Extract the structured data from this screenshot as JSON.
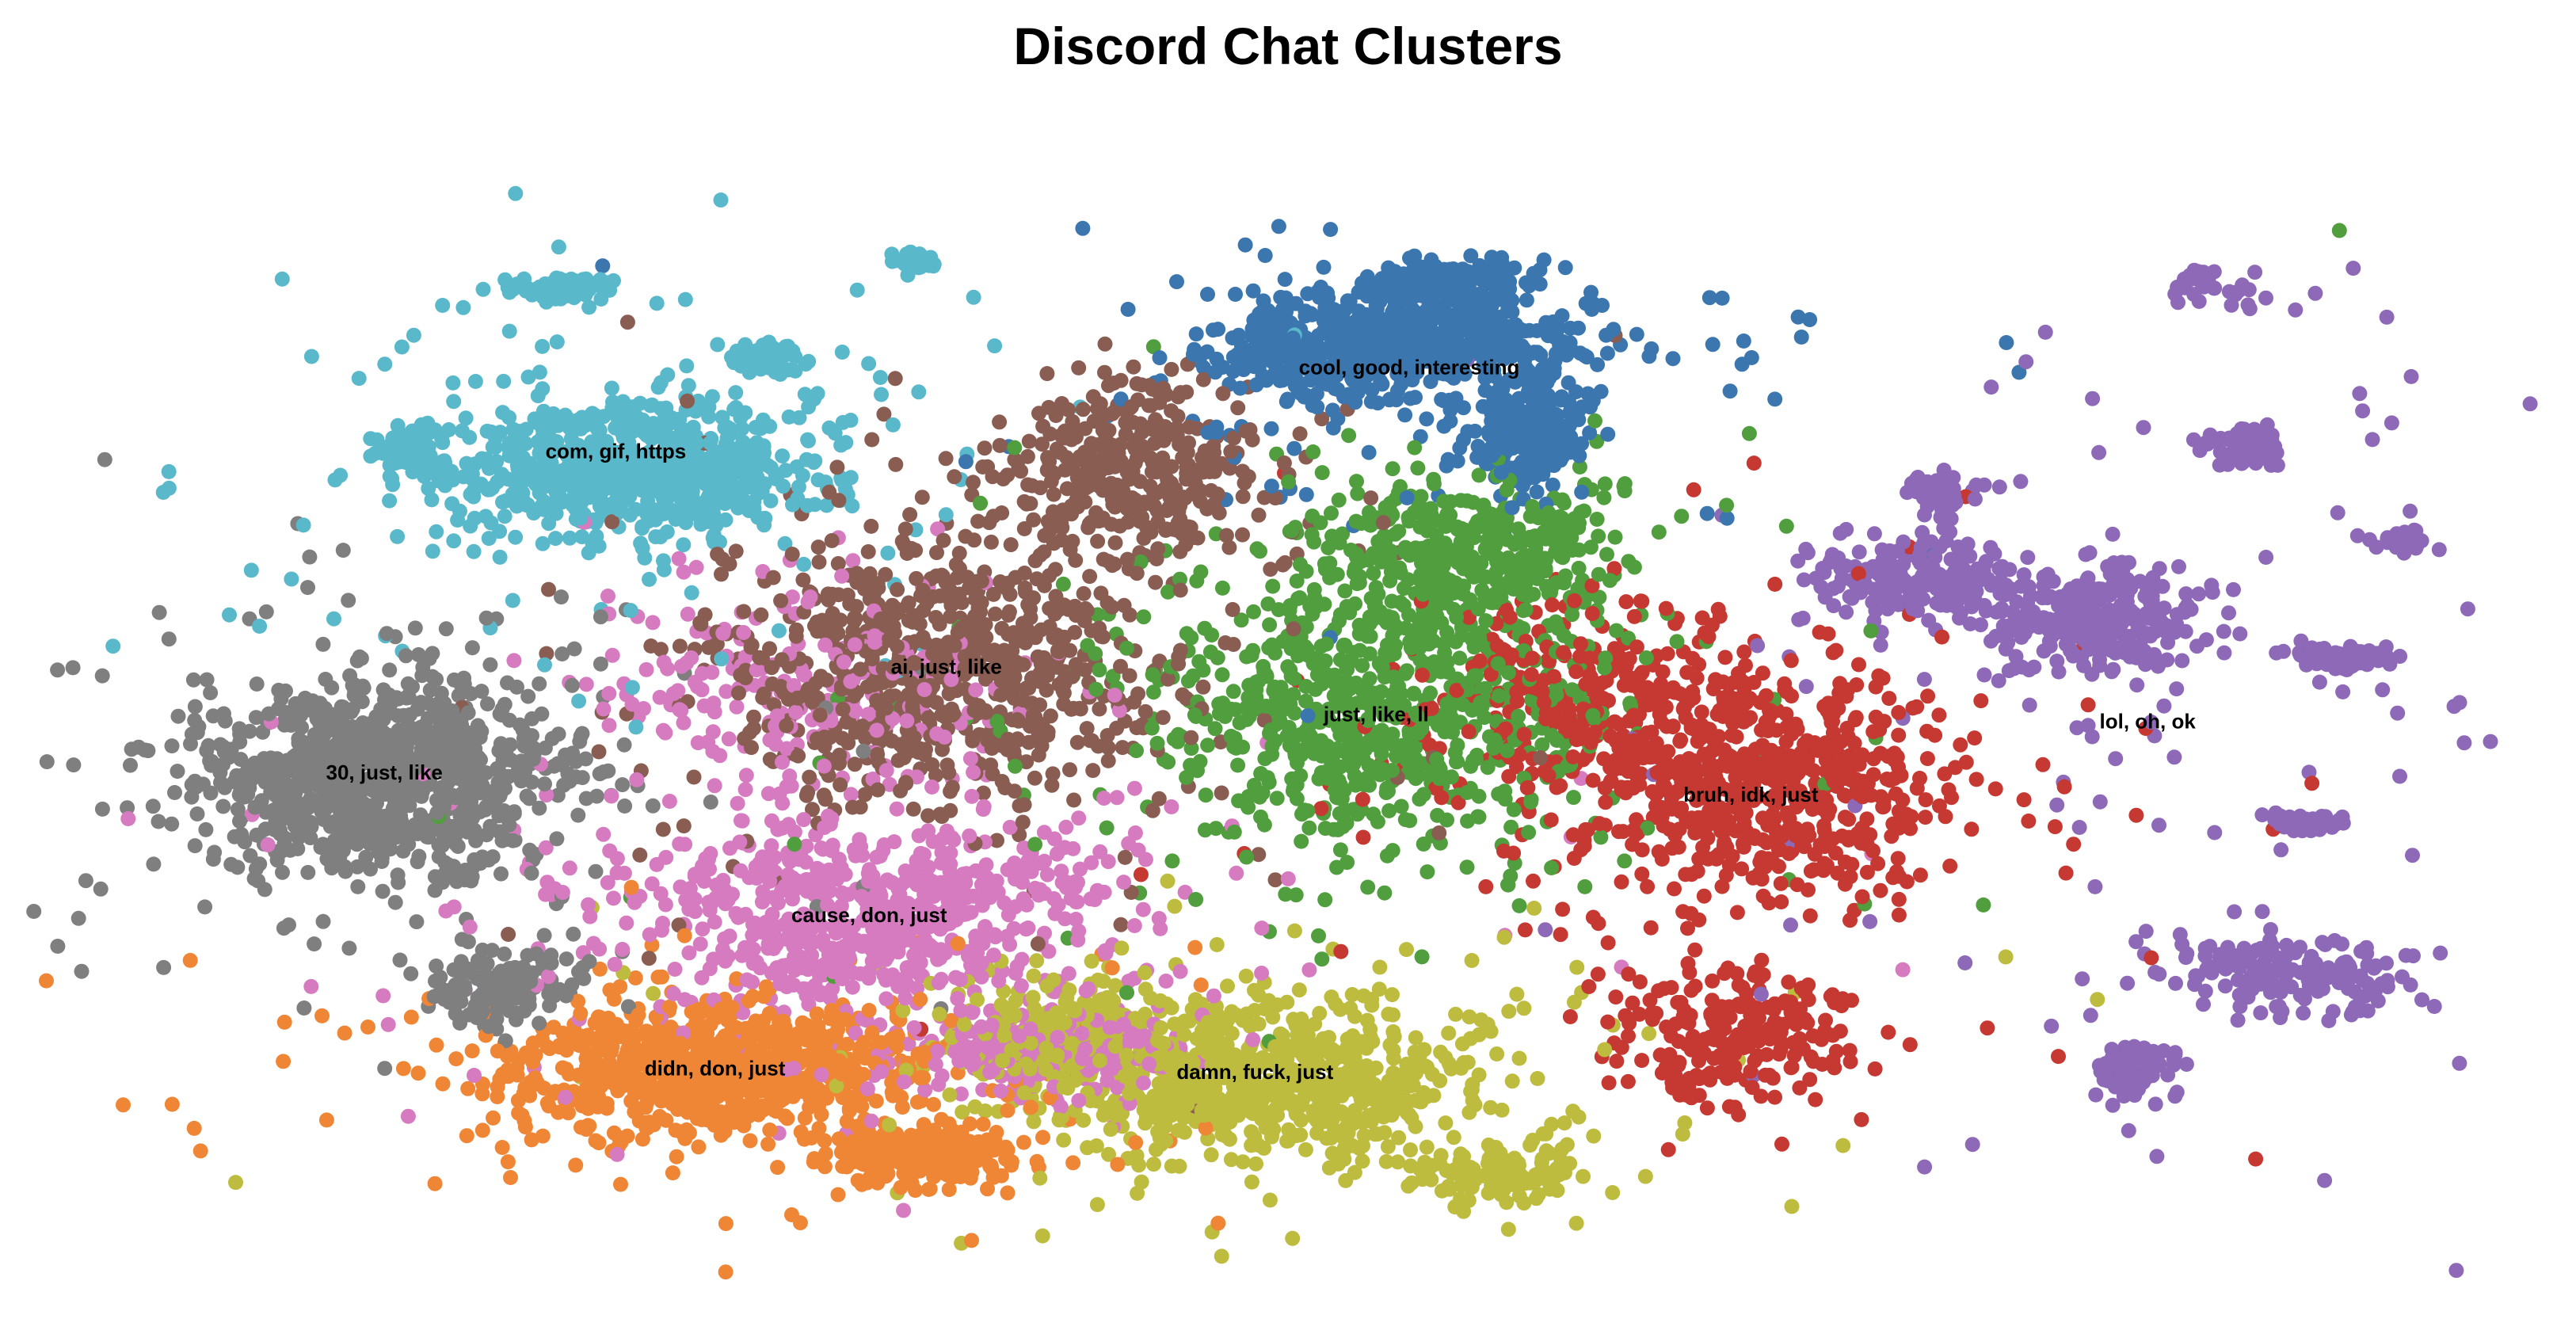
{
  "chart_data": {
    "type": "scatter",
    "title": "Discord Chat Clusters",
    "xlabel": "",
    "ylabel": "",
    "grid": false,
    "axes_visible": false,
    "legend": "none",
    "series": [
      {
        "id": "cluster-0",
        "label": "cool, good, interesting",
        "color": "#3b76af",
        "center": [
          1.3,
          4.95
        ],
        "spread": [
          1.35,
          0.95
        ],
        "blobs": [
          [
            1.3,
            5.3,
            1.2,
            0.55,
            0.9
          ],
          [
            2.35,
            4.1,
            0.45,
            0.6,
            0.45
          ],
          [
            0.3,
            5.2,
            0.5,
            0.55,
            0.35
          ],
          [
            1.65,
            6.1,
            0.6,
            0.25,
            0.3
          ]
        ]
      },
      {
        "id": "cluster-1",
        "label": "com, gif, https",
        "color": "#59b9cb",
        "center": [
          -5.9,
          3.8
        ],
        "spread": [
          1.45,
          0.9
        ],
        "blobs": [
          [
            -5.7,
            3.55,
            1.3,
            0.75,
            1.0
          ],
          [
            -6.4,
            6.05,
            0.35,
            0.12,
            0.2
          ],
          [
            -7.75,
            3.85,
            0.22,
            0.3,
            0.15
          ],
          [
            -4.55,
            5.1,
            0.3,
            0.15,
            0.12
          ],
          [
            -3.2,
            6.4,
            0.15,
            0.12,
            0.06
          ]
        ]
      },
      {
        "id": "cluster-2",
        "label": "ai, just, like",
        "color": "#8a5d52",
        "center": [
          -2.9,
          0.85
        ],
        "spread": [
          1.55,
          1.5
        ],
        "blobs": [
          [
            -2.9,
            0.85,
            1.5,
            1.4,
            1.0
          ],
          [
            -1.2,
            3.5,
            1.0,
            1.0,
            0.5
          ]
        ]
      },
      {
        "id": "cluster-3",
        "label": "just, like, ll",
        "color": "#519e3e",
        "center": [
          1.0,
          0.2
        ],
        "spread": [
          1.7,
          1.45
        ],
        "blobs": [
          [
            1.0,
            0.2,
            1.7,
            1.4,
            1.0
          ],
          [
            1.8,
            2.4,
            1.2,
            0.9,
            0.6
          ]
        ]
      },
      {
        "id": "cluster-4",
        "label": "lol, oh, ok",
        "color": "#8d69b8",
        "center": [
          8.0,
          0.1
        ],
        "spread": [
          1.6,
          2.2
        ],
        "blobs": [
          [
            7.5,
            1.5,
            0.8,
            0.6,
            0.5
          ],
          [
            8.9,
            3.9,
            0.3,
            0.22,
            0.15
          ],
          [
            9.8,
            1.0,
            0.38,
            0.16,
            0.15
          ],
          [
            9.4,
            -1.25,
            0.26,
            0.1,
            0.1
          ],
          [
            9.3,
            -3.35,
            0.8,
            0.42,
            0.3
          ],
          [
            7.9,
            -4.65,
            0.3,
            0.3,
            0.15
          ],
          [
            5.9,
            2.1,
            0.8,
            0.55,
            0.4
          ],
          [
            6.1,
            3.25,
            0.3,
            0.2,
            0.1
          ],
          [
            8.65,
            6.1,
            0.4,
            0.3,
            0.06
          ],
          [
            10.3,
            2.6,
            0.25,
            0.15,
            0.05
          ]
        ]
      },
      {
        "id": "cluster-5",
        "label": "bruh, idk, just",
        "color": "#c53932",
        "center": [
          4.4,
          -0.9
        ],
        "spread": [
          1.45,
          1.4
        ],
        "blobs": [
          [
            4.5,
            -0.8,
            1.3,
            1.2,
            1.0
          ],
          [
            3.0,
            0.5,
            1.3,
            1.0,
            0.5
          ],
          [
            4.2,
            -4.2,
            0.9,
            0.8,
            0.4
          ]
        ]
      },
      {
        "id": "cluster-6",
        "label": "cause, don, just",
        "color": "#d67bbf",
        "center": [
          -3.6,
          -2.55
        ],
        "spread": [
          1.9,
          1.15
        ],
        "blobs": [
          [
            -3.6,
            -2.55,
            1.8,
            1.1,
            1.0
          ],
          [
            -2.2,
            -4.4,
            1.2,
            0.5,
            0.4
          ],
          [
            -4.2,
            0.7,
            1.5,
            1.2,
            0.35
          ]
        ]
      },
      {
        "id": "cluster-7",
        "label": "30, just, like",
        "color": "#7f7f7f",
        "center": [
          -8.0,
          -0.6
        ],
        "spread": [
          1.45,
          1.15
        ],
        "blobs": [
          [
            -8.0,
            -0.6,
            1.35,
            1.05,
            1.0
          ],
          [
            -7.0,
            -3.5,
            0.5,
            0.4,
            0.15
          ]
        ]
      },
      {
        "id": "cluster-8",
        "label": "didn, don, just",
        "color": "#ef8636",
        "center": [
          -5.0,
          -4.65
        ],
        "spread": [
          1.6,
          0.7
        ],
        "blobs": [
          [
            -5.0,
            -4.6,
            1.55,
            0.68,
            1.0
          ],
          [
            -3.1,
            -5.8,
            0.7,
            0.3,
            0.3
          ]
        ]
      },
      {
        "id": "cluster-9",
        "label": "damn, fuck, just",
        "color": "#bdbc3f",
        "center": [
          -0.1,
          -4.7
        ],
        "spread": [
          1.8,
          0.95
        ],
        "blobs": [
          [
            0.0,
            -4.8,
            1.6,
            0.9,
            1.0
          ],
          [
            2.1,
            -6.1,
            0.55,
            0.3,
            0.2
          ],
          [
            -1.9,
            -4.2,
            0.8,
            0.6,
            0.4
          ]
        ]
      }
    ],
    "label_positions": [
      [
        1.3,
        4.95
      ],
      [
        -5.9,
        3.8
      ],
      [
        -2.9,
        0.85
      ],
      [
        1.0,
        0.2
      ],
      [
        8.0,
        0.1
      ],
      [
        4.4,
        -0.9
      ],
      [
        -3.6,
        -2.55
      ],
      [
        -8.0,
        -0.6
      ],
      [
        -5.0,
        -4.65
      ],
      [
        -0.1,
        -4.7
      ]
    ],
    "xlim": [
      -11.2,
      11.6
    ],
    "ylim": [
      -7.9,
      7.4
    ]
  }
}
